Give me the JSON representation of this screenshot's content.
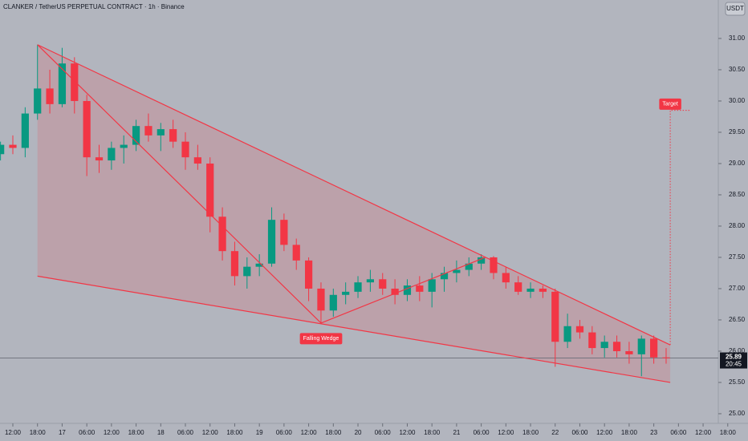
{
  "chart_data": {
    "type": "candlestick",
    "title": "CLANKER / TetherUS PERPETUAL CONTRACT · 1h · Binance",
    "currency": "USDT",
    "xlim": [
      -3.125,
      171.7
    ],
    "xticks": [
      {
        "value": 0,
        "label": "12:00"
      },
      {
        "value": 6,
        "label": "18:00"
      },
      {
        "value": 12,
        "label": "17"
      },
      {
        "value": 18,
        "label": "06:00"
      },
      {
        "value": 24,
        "label": "12:00"
      },
      {
        "value": 30,
        "label": "18:00"
      },
      {
        "value": 36,
        "label": "18"
      },
      {
        "value": 42,
        "label": "06:00"
      },
      {
        "value": 48,
        "label": "12:00"
      },
      {
        "value": 54,
        "label": "18:00"
      },
      {
        "value": 60,
        "label": "19"
      },
      {
        "value": 66,
        "label": "06:00"
      },
      {
        "value": 72,
        "label": "12:00"
      },
      {
        "value": 78,
        "label": "18:00"
      },
      {
        "value": 84,
        "label": "20"
      },
      {
        "value": 90,
        "label": "06:00"
      },
      {
        "value": 96,
        "label": "12:00"
      },
      {
        "value": 102,
        "label": "18:00"
      },
      {
        "value": 108,
        "label": "21"
      },
      {
        "value": 114,
        "label": "06:00"
      },
      {
        "value": 120,
        "label": "12:00"
      },
      {
        "value": 126,
        "label": "18:00"
      },
      {
        "value": 132,
        "label": "22"
      },
      {
        "value": 138,
        "label": "06:00"
      },
      {
        "value": 144,
        "label": "12:00"
      },
      {
        "value": 150,
        "label": "18:00"
      },
      {
        "value": 156,
        "label": "23"
      },
      {
        "value": 162,
        "label": "06:00"
      },
      {
        "value": 168,
        "label": "12:00"
      },
      {
        "value": 174,
        "label": "18:00"
      }
    ],
    "ylim": [
      24.615,
      31.615
    ],
    "yticks": [
      {
        "value": 25,
        "label": "25.00"
      },
      {
        "value": 25.5,
        "label": "25.50"
      },
      {
        "value": 26,
        "label": "26.00"
      },
      {
        "value": 26.5,
        "label": "26.50"
      },
      {
        "value": 27,
        "label": "27.00"
      },
      {
        "value": 27.5,
        "label": "27.50"
      },
      {
        "value": 28,
        "label": "28.00"
      },
      {
        "value": 28.5,
        "label": "28.50"
      },
      {
        "value": 29,
        "label": "29.00"
      },
      {
        "value": 29.5,
        "label": "29.50"
      },
      {
        "value": 30,
        "label": "30.00"
      },
      {
        "value": 30.5,
        "label": "30.50"
      },
      {
        "value": 31,
        "label": "31.00"
      }
    ],
    "up_color": "#089981",
    "down_color": "#f23645",
    "candles": {
      "x": [
        -3,
        0,
        3,
        6,
        9,
        12,
        15,
        18,
        21,
        24,
        27,
        30,
        33,
        36,
        39,
        42,
        45,
        48,
        51,
        54,
        57,
        60,
        63,
        66,
        69,
        72,
        75,
        78,
        81,
        84,
        87,
        90,
        93,
        96,
        99,
        102,
        105,
        108,
        111,
        114,
        117,
        120,
        123,
        126,
        129,
        132,
        135,
        138,
        141,
        144,
        147,
        150,
        153,
        156,
        159
      ],
      "open": [
        29.15,
        29.3,
        29.25,
        29.8,
        30.2,
        29.95,
        30.6,
        30.0,
        29.1,
        29.05,
        29.25,
        29.3,
        29.6,
        29.45,
        29.55,
        29.35,
        29.1,
        29.0,
        28.15,
        27.6,
        27.2,
        27.35,
        27.4,
        28.1,
        27.7,
        27.45,
        27.0,
        26.65,
        26.9,
        26.95,
        27.1,
        27.15,
        27.0,
        26.9,
        27.05,
        26.95,
        27.15,
        27.25,
        27.3,
        27.4,
        27.5,
        27.25,
        27.1,
        26.95,
        27.0,
        26.95,
        26.15,
        26.4,
        26.3,
        26.05,
        26.15,
        26.0,
        25.95,
        26.2,
        25.9
      ],
      "high": [
        29.35,
        29.45,
        29.9,
        30.9,
        30.5,
        30.85,
        30.7,
        30.1,
        29.3,
        29.35,
        29.45,
        29.7,
        29.8,
        29.65,
        29.7,
        29.5,
        29.3,
        29.1,
        28.3,
        27.75,
        27.5,
        27.55,
        28.3,
        28.2,
        27.8,
        27.5,
        27.1,
        27.0,
        27.1,
        27.2,
        27.3,
        27.25,
        27.15,
        27.15,
        27.2,
        27.25,
        27.35,
        27.45,
        27.5,
        27.55,
        27.52,
        27.35,
        27.2,
        27.1,
        27.05,
        27.0,
        26.6,
        26.5,
        26.4,
        26.25,
        26.25,
        26.15,
        26.25,
        26.25,
        26.05
      ],
      "low": [
        29.05,
        29.15,
        29.1,
        29.7,
        29.8,
        29.9,
        29.8,
        28.8,
        28.85,
        28.9,
        29.0,
        29.2,
        29.35,
        29.2,
        29.25,
        28.9,
        28.9,
        27.9,
        27.45,
        27.05,
        27.0,
        27.2,
        27.35,
        27.6,
        27.3,
        26.8,
        26.45,
        26.55,
        26.75,
        26.85,
        26.95,
        26.9,
        26.75,
        26.8,
        26.8,
        26.7,
        26.95,
        27.1,
        27.2,
        27.3,
        27.15,
        27.0,
        26.9,
        26.85,
        26.85,
        25.75,
        26.05,
        26.2,
        25.95,
        25.9,
        25.9,
        25.8,
        25.6,
        25.8,
        25.8
      ],
      "close": [
        29.3,
        29.25,
        29.8,
        30.2,
        29.95,
        30.6,
        30.0,
        29.1,
        29.05,
        29.25,
        29.3,
        29.6,
        29.45,
        29.55,
        29.35,
        29.1,
        29.0,
        28.15,
        27.6,
        27.2,
        27.35,
        27.4,
        28.1,
        27.7,
        27.45,
        27.0,
        26.65,
        26.9,
        26.95,
        27.1,
        27.15,
        27.0,
        26.9,
        27.05,
        26.95,
        27.15,
        27.25,
        27.3,
        27.4,
        27.5,
        27.25,
        27.1,
        26.95,
        27.0,
        26.95,
        26.15,
        26.4,
        26.3,
        26.05,
        26.15,
        26.0,
        25.95,
        26.2,
        25.9,
        25.89
      ]
    },
    "last_price": {
      "value": 25.89,
      "label": "25.89"
    },
    "countdown": "20:45",
    "drawings": [
      {
        "points": [
          [
            6,
            30.9
          ],
          [
            160,
            26.1
          ]
        ]
      },
      {
        "points": [
          [
            6,
            27.2
          ],
          [
            160,
            25.5
          ]
        ]
      },
      {
        "points": [
          [
            6,
            30.9
          ],
          [
            75,
            26.45
          ],
          [
            115,
            27.5
          ]
        ]
      }
    ],
    "annotations": [
      {
        "text": "Falling Wedge",
        "x": 75,
        "y": 26.2
      },
      {
        "text": "Target",
        "x": 160,
        "y": 29.95
      }
    ],
    "target_line": {
      "x": 160,
      "from": 26.1,
      "to": 29.85,
      "end_x": 165
    }
  }
}
